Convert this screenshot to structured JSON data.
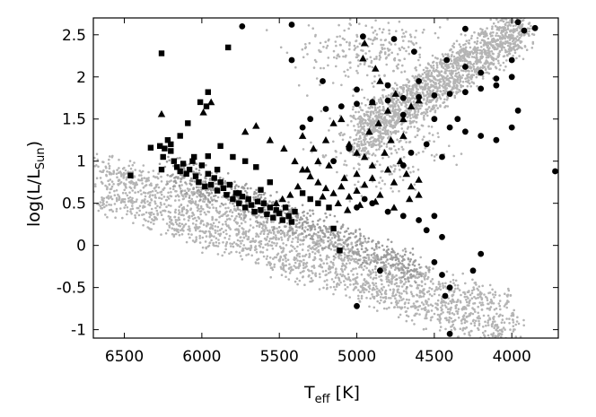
{
  "chart_data": {
    "type": "scatter",
    "title": "",
    "xlabel": {
      "main": "T",
      "sub": "eff",
      "unit": " [K]"
    },
    "ylabel": {
      "prefix": "log(L/L",
      "sub": "Sun",
      "suffix": ")"
    },
    "x_axis": {
      "reversed": true,
      "xlim": [
        6700,
        3700
      ],
      "ticks": [
        6500,
        6000,
        5500,
        5000,
        4500,
        4000
      ]
    },
    "y_axis": {
      "ylim": [
        -1.1,
        2.7
      ],
      "ticks": [
        -1,
        -0.5,
        0,
        0.5,
        1,
        1.5,
        2,
        2.5
      ],
      "tick_labels": [
        "-1",
        "-0.5",
        "0",
        "0.5",
        "1",
        "1.5",
        "2",
        "2.5"
      ]
    },
    "grid": false,
    "legend": "none",
    "colors": {
      "background_cloud": "#b4b4b4",
      "dense_cloud": "#9c9c9c",
      "markers": "#000000"
    },
    "series": [
      {
        "marker": "dot",
        "color": "#b4b4b4",
        "role": "background",
        "regions": [
          {
            "kind": "band",
            "from": [
              6650,
              0.75
            ],
            "to": [
              4000,
              -0.95
            ],
            "halfwidth": 0.42,
            "count": 2200
          },
          {
            "kind": "band",
            "from": [
              6200,
              0.9
            ],
            "to": [
              4600,
              -0.3
            ],
            "halfwidth": 0.22,
            "count": 700
          },
          {
            "kind": "band",
            "from": [
              5000,
              1.3
            ],
            "to": [
              3920,
              2.6
            ],
            "halfwidth": 0.34,
            "count": 1700
          },
          {
            "kind": "blob",
            "center": [
              4850,
              1.2
            ],
            "spread": [
              200,
              0.3
            ],
            "count": 250
          },
          {
            "kind": "blob",
            "center": [
              4900,
              2.3
            ],
            "spread": [
              260,
              0.2
            ],
            "count": 250
          }
        ]
      },
      {
        "marker": "square",
        "color": "#000000",
        "points": [
          [
            6460,
            0.83
          ],
          [
            6330,
            1.16
          ],
          [
            6270,
            1.18
          ],
          [
            6240,
            1.15
          ],
          [
            6250,
            1.05
          ],
          [
            6260,
            0.9
          ],
          [
            6220,
            1.25
          ],
          [
            6200,
            1.2
          ],
          [
            6180,
            1.0
          ],
          [
            6160,
            0.93
          ],
          [
            6140,
            0.88
          ],
          [
            6120,
            0.97
          ],
          [
            6100,
            0.85
          ],
          [
            6080,
            0.9
          ],
          [
            6060,
            1.0
          ],
          [
            6040,
            0.82
          ],
          [
            6020,
            0.75
          ],
          [
            6000,
            0.95
          ],
          [
            5980,
            0.7
          ],
          [
            5960,
            0.85
          ],
          [
            5940,
            0.72
          ],
          [
            5920,
            0.8
          ],
          [
            5900,
            0.65
          ],
          [
            5880,
            0.75
          ],
          [
            5860,
            0.68
          ],
          [
            5840,
            0.6
          ],
          [
            5820,
            0.72
          ],
          [
            5800,
            0.55
          ],
          [
            5780,
            0.62
          ],
          [
            5760,
            0.5
          ],
          [
            5740,
            0.58
          ],
          [
            5720,
            0.45
          ],
          [
            5700,
            0.55
          ],
          [
            5680,
            0.48
          ],
          [
            5660,
            0.4
          ],
          [
            5640,
            0.52
          ],
          [
            5620,
            0.42
          ],
          [
            5600,
            0.5
          ],
          [
            5580,
            0.37
          ],
          [
            5560,
            0.45
          ],
          [
            5540,
            0.33
          ],
          [
            5520,
            0.42
          ],
          [
            5500,
            0.38
          ],
          [
            5480,
            0.3
          ],
          [
            5460,
            0.45
          ],
          [
            5440,
            0.35
          ],
          [
            5420,
            0.28
          ],
          [
            5400,
            0.4
          ],
          [
            6260,
            2.28
          ],
          [
            5830,
            2.35
          ],
          [
            6010,
            1.7
          ],
          [
            5960,
            1.82
          ],
          [
            5970,
            1.65
          ],
          [
            6090,
            1.45
          ],
          [
            6140,
            1.3
          ],
          [
            6200,
            1.12
          ],
          [
            5880,
            1.18
          ],
          [
            5800,
            1.05
          ],
          [
            5720,
            1.0
          ],
          [
            5960,
            1.06
          ],
          [
            5650,
            0.93
          ],
          [
            5560,
            0.75
          ],
          [
            5350,
            0.62
          ],
          [
            5300,
            0.55
          ],
          [
            5250,
            0.5
          ],
          [
            5180,
            0.45
          ],
          [
            5150,
            0.2
          ],
          [
            5110,
            -0.06
          ],
          [
            5760,
            0.62
          ],
          [
            5620,
            0.66
          ],
          [
            5900,
            0.9
          ],
          [
            6050,
            1.05
          ]
        ]
      },
      {
        "marker": "triangle",
        "color": "#000000",
        "points": [
          [
            6260,
            1.56
          ],
          [
            5940,
            1.7
          ],
          [
            5990,
            1.58
          ],
          [
            5720,
            1.35
          ],
          [
            5650,
            1.42
          ],
          [
            5560,
            1.25
          ],
          [
            5470,
            1.15
          ],
          [
            5400,
            1.0
          ],
          [
            5350,
            0.9
          ],
          [
            5300,
            0.82
          ],
          [
            5250,
            0.75
          ],
          [
            5200,
            0.68
          ],
          [
            5150,
            0.62
          ],
          [
            5100,
            0.7
          ],
          [
            5050,
            0.58
          ],
          [
            5000,
            0.65
          ],
          [
            4950,
            0.72
          ],
          [
            4900,
            0.8
          ],
          [
            4850,
            0.6
          ],
          [
            4800,
            0.9
          ],
          [
            4760,
            0.75
          ],
          [
            4720,
            1.0
          ],
          [
            4680,
            0.85
          ],
          [
            4650,
            0.7
          ],
          [
            4600,
            0.78
          ],
          [
            4950,
            2.4
          ],
          [
            4960,
            2.22
          ],
          [
            4880,
            2.1
          ],
          [
            4900,
            1.7
          ],
          [
            4850,
            1.95
          ],
          [
            4800,
            1.6
          ],
          [
            4750,
            1.8
          ],
          [
            4700,
            1.5
          ],
          [
            4650,
            1.65
          ],
          [
            4600,
            1.72
          ],
          [
            5100,
            1.5
          ],
          [
            5150,
            1.45
          ],
          [
            5200,
            1.25
          ],
          [
            5050,
            1.2
          ],
          [
            5000,
            1.1
          ],
          [
            4950,
            1.05
          ],
          [
            5250,
            1.0
          ],
          [
            5320,
            0.9
          ],
          [
            5380,
            0.7
          ],
          [
            5430,
            0.6
          ],
          [
            5480,
            0.55
          ],
          [
            5520,
            0.5
          ],
          [
            5000,
            0.85
          ],
          [
            4900,
            0.95
          ],
          [
            4820,
            1.1
          ],
          [
            4780,
            1.25
          ],
          [
            4700,
            1.3
          ],
          [
            5220,
            0.58
          ],
          [
            5120,
            0.5
          ],
          [
            5060,
            0.42
          ],
          [
            4980,
            0.48
          ],
          [
            4880,
            0.52
          ],
          [
            4760,
            0.45
          ],
          [
            4660,
            0.55
          ],
          [
            4600,
            0.6
          ],
          [
            5350,
            1.3
          ],
          [
            5280,
            1.15
          ],
          [
            5180,
            0.95
          ],
          [
            5080,
            0.8
          ],
          [
            4920,
            1.35
          ],
          [
            4860,
            1.45
          ]
        ]
      },
      {
        "marker": "circle",
        "color": "#000000",
        "points": [
          [
            5740,
            2.6
          ],
          [
            5420,
            2.62
          ],
          [
            5420,
            2.2
          ],
          [
            5220,
            1.95
          ],
          [
            5000,
            1.85
          ],
          [
            4960,
            2.48
          ],
          [
            4760,
            2.45
          ],
          [
            4630,
            2.3
          ],
          [
            4420,
            2.2
          ],
          [
            4300,
            2.12
          ],
          [
            4200,
            2.05
          ],
          [
            4100,
            1.98
          ],
          [
            4000,
            2.0
          ],
          [
            4000,
            2.2
          ],
          [
            3920,
            2.55
          ],
          [
            3850,
            2.58
          ],
          [
            3960,
            2.65
          ],
          [
            4300,
            2.57
          ],
          [
            5200,
            1.62
          ],
          [
            5100,
            1.65
          ],
          [
            5000,
            1.68
          ],
          [
            4900,
            1.7
          ],
          [
            4800,
            1.72
          ],
          [
            4700,
            1.75
          ],
          [
            4600,
            1.76
          ],
          [
            4500,
            1.78
          ],
          [
            4400,
            1.8
          ],
          [
            4300,
            1.82
          ],
          [
            4200,
            1.86
          ],
          [
            4100,
            1.9
          ],
          [
            4800,
            1.9
          ],
          [
            4600,
            1.95
          ],
          [
            4700,
            1.55
          ],
          [
            4500,
            1.5
          ],
          [
            4400,
            1.4
          ],
          [
            4300,
            1.35
          ],
          [
            4200,
            1.3
          ],
          [
            4100,
            1.25
          ],
          [
            4000,
            1.4
          ],
          [
            3960,
            1.6
          ],
          [
            5300,
            1.5
          ],
          [
            5350,
            1.4
          ],
          [
            4950,
            0.55
          ],
          [
            5000,
            0.45
          ],
          [
            4900,
            0.5
          ],
          [
            4800,
            0.4
          ],
          [
            4700,
            0.35
          ],
          [
            4600,
            0.3
          ],
          [
            4550,
            0.18
          ],
          [
            4450,
            0.1
          ],
          [
            4500,
            -0.2
          ],
          [
            4450,
            -0.35
          ],
          [
            4400,
            -0.5
          ],
          [
            4430,
            -0.6
          ],
          [
            4400,
            -1.05
          ],
          [
            4200,
            -0.1
          ],
          [
            4250,
            -0.3
          ],
          [
            4500,
            0.35
          ],
          [
            5000,
            -0.72
          ],
          [
            4850,
            -0.3
          ],
          [
            3720,
            0.88
          ],
          [
            4700,
            0.95
          ],
          [
            4650,
            1.1
          ],
          [
            4550,
            1.2
          ],
          [
            4450,
            1.05
          ],
          [
            4350,
            1.5
          ],
          [
            5050,
            1.15
          ],
          [
            5150,
            1.0
          ]
        ]
      }
    ]
  }
}
